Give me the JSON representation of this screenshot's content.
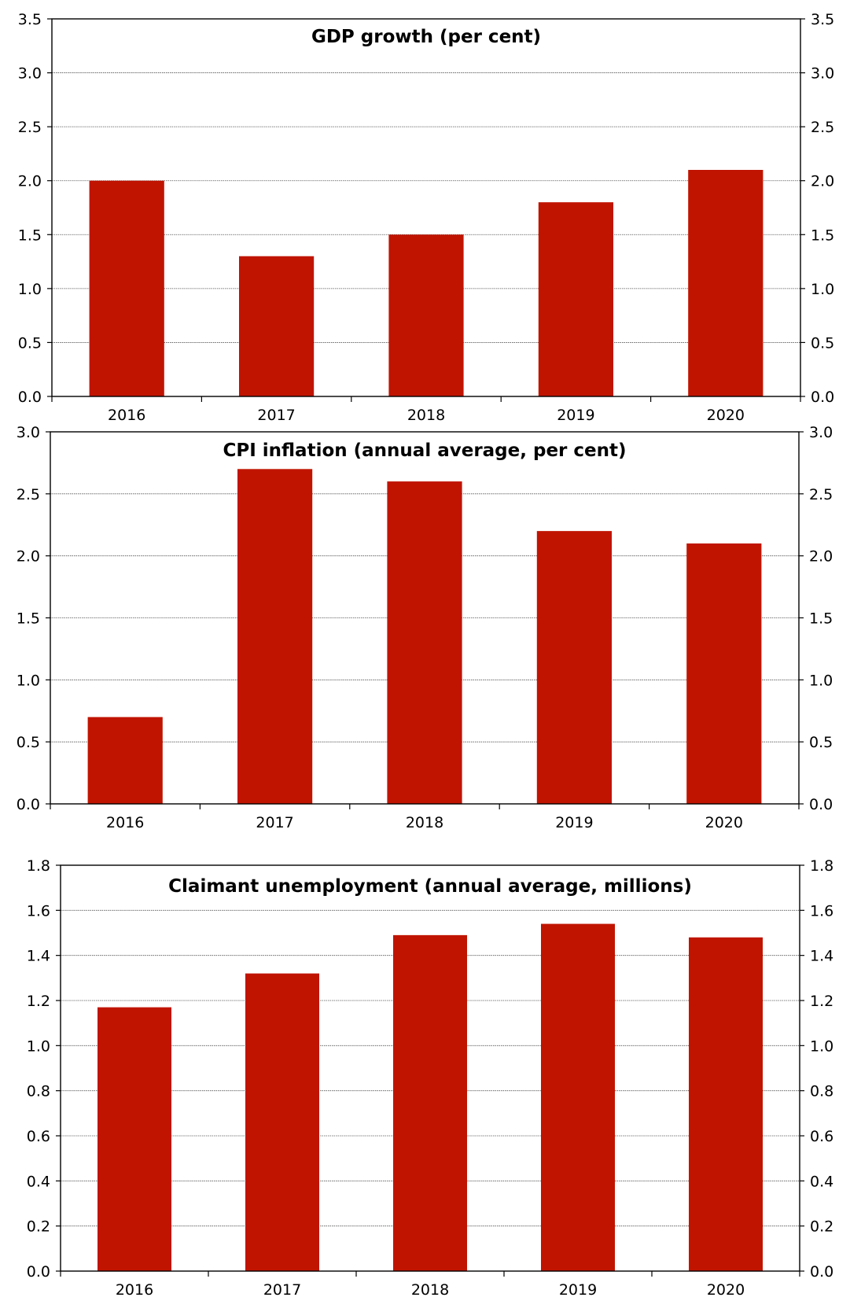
{
  "chart_data": [
    {
      "type": "bar",
      "title": "GDP growth (per cent)",
      "categories": [
        "2016",
        "2017",
        "2018",
        "2019",
        "2020"
      ],
      "values": [
        2.0,
        1.3,
        1.5,
        1.8,
        2.1
      ],
      "ylim": [
        0,
        3.5
      ],
      "ytick_step": 0.5,
      "ytick_decimals": 1,
      "xlabel": "",
      "ylabel": "",
      "grid": true,
      "bar_color": "#c01400",
      "dual_y_axis": true
    },
    {
      "type": "bar",
      "title": "CPI inflation (annual average, per cent)",
      "categories": [
        "2016",
        "2017",
        "2018",
        "2019",
        "2020"
      ],
      "values": [
        0.7,
        2.7,
        2.6,
        2.2,
        2.1
      ],
      "ylim": [
        0,
        3.0
      ],
      "ytick_step": 0.5,
      "ytick_decimals": 1,
      "xlabel": "",
      "ylabel": "",
      "grid": true,
      "bar_color": "#c01400",
      "dual_y_axis": true
    },
    {
      "type": "bar",
      "title": "Claimant unemployment (annual average, millions)",
      "categories": [
        "2016",
        "2017",
        "2018",
        "2019",
        "2020"
      ],
      "values": [
        1.17,
        1.32,
        1.49,
        1.54,
        1.48
      ],
      "ylim": [
        0,
        1.8
      ],
      "ytick_step": 0.2,
      "ytick_decimals": 1,
      "xlabel": "",
      "ylabel": "",
      "grid": true,
      "bar_color": "#c01400",
      "dual_y_axis": true
    }
  ]
}
